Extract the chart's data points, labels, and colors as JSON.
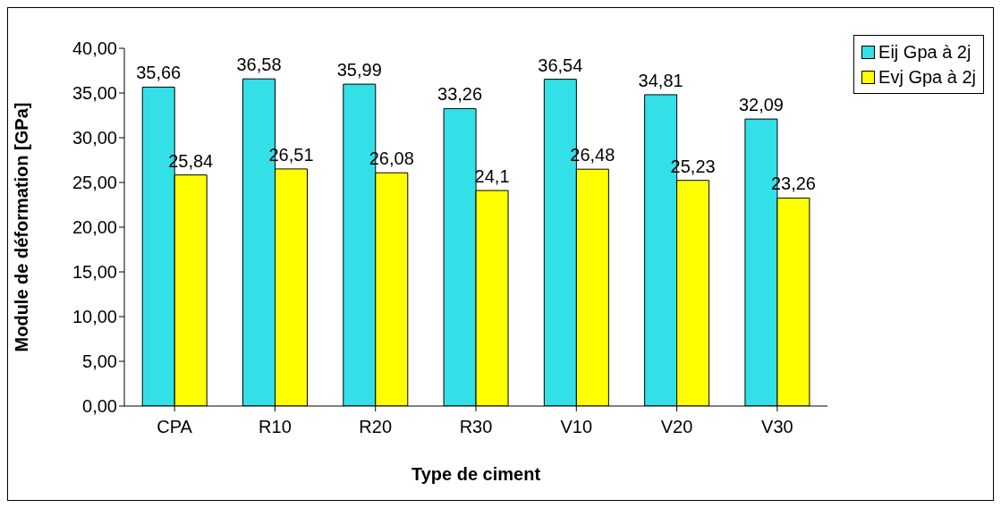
{
  "chart_data": {
    "type": "bar",
    "xlabel": "Type de ciment",
    "ylabel": "Module de déformation [GPa]",
    "categories": [
      "CPA",
      "R10",
      "R20",
      "R30",
      "V10",
      "V20",
      "V30"
    ],
    "series": [
      {
        "name": "Eij Gpa à 2j",
        "color": "#33e0e8",
        "values": [
          35.66,
          36.58,
          35.99,
          33.26,
          36.54,
          34.81,
          32.09
        ],
        "value_labels": [
          "35,66",
          "36,58",
          "35,99",
          "33,26",
          "36,54",
          "34,81",
          "32,09"
        ]
      },
      {
        "name": "Evj Gpa à 2j",
        "color": "#ffff00",
        "values": [
          25.84,
          26.51,
          26.08,
          24.1,
          26.48,
          25.23,
          23.26
        ],
        "value_labels": [
          "25,84",
          "26,51",
          "26,08",
          "24,1",
          "26,48",
          "25,23",
          "23,26"
        ]
      }
    ],
    "ylim": [
      0,
      40
    ],
    "yticks": [
      {
        "value": 0,
        "label": "0,00"
      },
      {
        "value": 5,
        "label": "5,00"
      },
      {
        "value": 10,
        "label": "10,00"
      },
      {
        "value": 15,
        "label": "15,00"
      },
      {
        "value": 20,
        "label": "20,00"
      },
      {
        "value": 25,
        "label": "25,00"
      },
      {
        "value": 30,
        "label": "30,00"
      },
      {
        "value": 35,
        "label": "35,00"
      },
      {
        "value": 40,
        "label": "40,00"
      }
    ],
    "grid": false,
    "legend": "top right"
  }
}
